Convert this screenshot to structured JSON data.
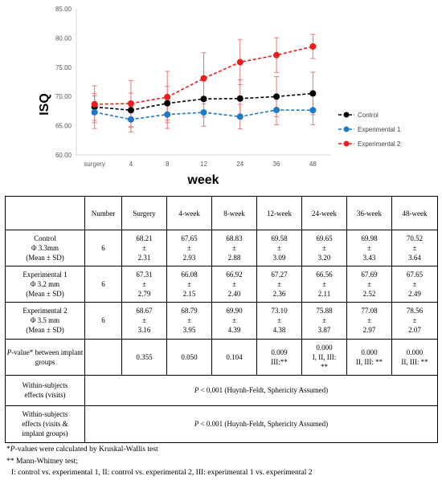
{
  "chart_data": {
    "type": "line",
    "categories": [
      "surgery",
      "4",
      "8",
      "12",
      "24",
      "36",
      "48"
    ],
    "xlabel": "week",
    "ylabel": "ISQ",
    "ylim": [
      60,
      85
    ],
    "yticks": [
      "60.00",
      "65.00",
      "70.00",
      "75.00",
      "80.00",
      "85.00"
    ],
    "grid": false,
    "legend": "right",
    "series": [
      {
        "name": "Control",
        "color": "#000000",
        "values": [
          68.21,
          67.65,
          68.83,
          69.58,
          69.65,
          69.98,
          70.52
        ],
        "sd": [
          2.31,
          2.93,
          2.88,
          3.09,
          3.2,
          3.43,
          3.64
        ]
      },
      {
        "name": "Experimental 1",
        "color": "#1f78c8",
        "values": [
          67.31,
          66.08,
          66.92,
          67.27,
          66.56,
          67.69,
          67.65
        ],
        "sd": [
          2.79,
          2.15,
          2.4,
          2.36,
          2.11,
          2.52,
          2.49
        ]
      },
      {
        "name": "Experimental 2",
        "color": "#ee1c1c",
        "values": [
          68.67,
          68.79,
          69.9,
          73.1,
          75.88,
          77.08,
          78.56
        ],
        "sd": [
          3.16,
          3.95,
          4.39,
          4.38,
          3.87,
          2.97,
          2.07
        ]
      }
    ],
    "errorbar_color": "#e87878"
  },
  "table": {
    "headers": [
      "",
      "Number",
      "Surgery",
      "4-week",
      "8-week",
      "12-week",
      "24-week",
      "36-week",
      "48-week"
    ],
    "pm": "±",
    "groups": [
      {
        "label": [
          "Control",
          "Φ 3.3mm",
          "(Mean ± SD)"
        ],
        "n": "6",
        "means": [
          "68.21",
          "67.65",
          "68.83",
          "69.58",
          "69.65",
          "69.98",
          "70.52"
        ],
        "sds": [
          "2.31",
          "2.93",
          "2.88",
          "3.09",
          "3.20",
          "3.43",
          "3.64"
        ]
      },
      {
        "label": [
          "Experimental 1",
          "Φ 3.2 mm",
          "(Mean ± SD)"
        ],
        "n": "6",
        "means": [
          "67.31",
          "66.08",
          "66.92",
          "67.27",
          "66.56",
          "67.69",
          "67.65"
        ],
        "sds": [
          "2.79",
          "2.15",
          "2.40",
          "2.36",
          "2.11",
          "2.52",
          "2.49"
        ]
      },
      {
        "label": [
          "Experimental 2",
          "Φ 3.5 mm",
          "(Mean ± SD)"
        ],
        "n": "6",
        "means": [
          "68.67",
          "68.79",
          "69.90",
          "73.10",
          "75.88",
          "77.08",
          "78.56"
        ],
        "sds": [
          "3.16",
          "3.95",
          "4.39",
          "4.38",
          "3.87",
          "2.97",
          "2.07"
        ]
      }
    ],
    "pvalue_label_italic": "P",
    "pvalue_label_rest": "-value* between implant groups",
    "pvalues": [
      [
        "0.355"
      ],
      [
        "0.050"
      ],
      [
        "0.104"
      ],
      [
        "0.009",
        "III:**"
      ],
      [
        "0.000",
        "I, II, III:",
        "**"
      ],
      [
        "0.000",
        "II, III:  **"
      ],
      [
        "0.000",
        "II, III: **"
      ]
    ],
    "within_rows": [
      {
        "label": [
          "Within-subjects",
          "effects (visits)"
        ],
        "p_italic": "P",
        "text": " < 0.001 (Huynh-Feldt, Sphericity Assumed)"
      },
      {
        "label": [
          "Within-subjects",
          "effects (visits &",
          "implant groups)"
        ],
        "p_italic": "P",
        "text": " < 0.001 (Huynh-Feldt, Sphericity Assumed)"
      }
    ]
  },
  "notes": {
    "line1_star": "*",
    "line1_italic": "P",
    "line1_rest": "-values were calculated by Kruskal-Wallis test",
    "line2": "** Mann-Whitney test;",
    "line3": "I: control vs. experimental 1, II: control vs. experimental 2, III: experimental 1 vs. experimental 2"
  }
}
